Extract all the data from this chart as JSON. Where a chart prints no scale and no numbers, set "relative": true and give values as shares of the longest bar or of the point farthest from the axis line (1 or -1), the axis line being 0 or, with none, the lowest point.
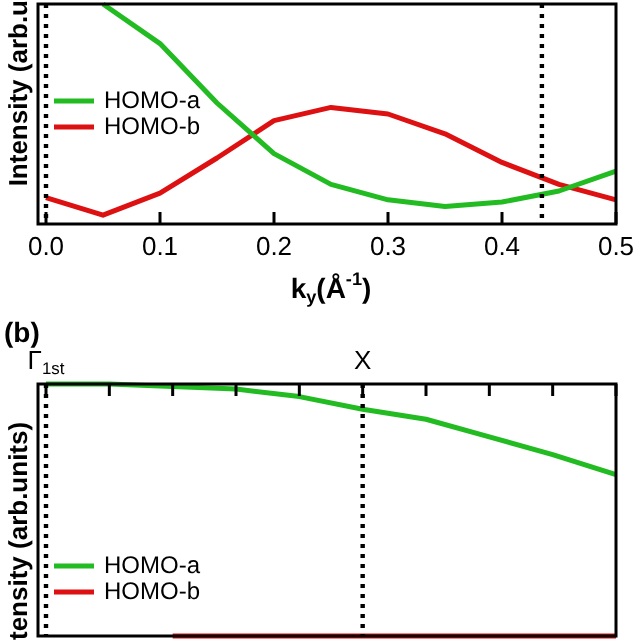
{
  "chart_data": [
    {
      "type": "line",
      "relative": true,
      "xlabel": "k$_{y}$(Å$^{-1}$)",
      "ylabel": "Intensity (arb.u",
      "xlim": [
        0,
        0.5
      ],
      "xticks": [
        {
          "value": 0,
          "label": "0.0"
        },
        {
          "value": 0.1,
          "label": "0.1"
        },
        {
          "value": 0.2,
          "label": "0.2"
        },
        {
          "value": 0.3,
          "label": "0.3"
        },
        {
          "value": 0.4,
          "label": "0.4"
        },
        {
          "value": 0.5,
          "label": "0.5"
        }
      ],
      "x": [
        0,
        0.05,
        0.1,
        0.15,
        0.2,
        0.25,
        0.3,
        0.35,
        0.4,
        0.45,
        0.5
      ],
      "series": [
        {
          "name": "HOMO-a",
          "color": "#22bb22",
          "values": [
            null,
            1,
            0.82,
            0.55,
            0.32,
            0.18,
            0.11,
            0.08,
            0.1,
            0.15,
            0.24
          ]
        },
        {
          "name": "HOMO-b",
          "color": "#dd1111",
          "values": [
            0.12,
            0.04,
            0.14,
            0.3,
            0.47,
            0.53,
            0.5,
            0.41,
            0.28,
            0.18,
            0.11
          ]
        }
      ],
      "ref_lines": [
        {
          "axis": "x",
          "value": 0,
          "line_style": "dotted",
          "color": "#000000"
        },
        {
          "axis": "x",
          "value": 0.435,
          "line_style": "dotted",
          "color": "#000000"
        }
      ],
      "legend": "left",
      "marker": "none",
      "line_style": "solid"
    },
    {
      "type": "line",
      "relative": true,
      "title": "(b)",
      "ylabel": "tensity (arb.units)",
      "categories": [
        "Γ$_{1st}$",
        null,
        null,
        null,
        null,
        "X",
        null,
        null,
        null,
        null
      ],
      "series": [
        {
          "name": "HOMO-a",
          "color": "#22bb22",
          "values": [
            1,
            1,
            0.99,
            0.98,
            0.95,
            0.9,
            0.86,
            0.79,
            0.72,
            0.64
          ]
        },
        {
          "name": "HOMO-b",
          "color": "#dd1111",
          "values": [
            null,
            null,
            0,
            0,
            0,
            0,
            0,
            0,
            0,
            0
          ]
        }
      ],
      "ref_lines": [
        {
          "axis": "x",
          "value": "Γ$_{1st}$",
          "line_style": "dotted",
          "color": "#000000"
        },
        {
          "axis": "x",
          "value": "X",
          "line_style": "dotted",
          "color": "#000000"
        }
      ],
      "legend": "bottom left",
      "marker": "none",
      "line_style": "solid"
    }
  ]
}
